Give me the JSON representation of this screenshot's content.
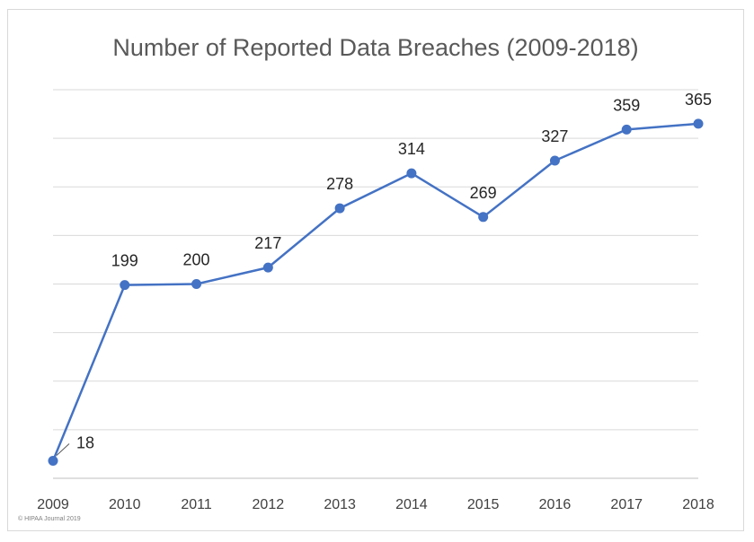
{
  "chart_data": {
    "type": "line",
    "title": "Number of Reported Data Breaches (2009-2018)",
    "xlabel": "",
    "ylabel": "",
    "categories": [
      "2009",
      "2010",
      "2011",
      "2012",
      "2013",
      "2014",
      "2015",
      "2016",
      "2017",
      "2018"
    ],
    "series": [
      {
        "values": [
          18,
          199,
          200,
          217,
          278,
          314,
          269,
          327,
          359,
          365
        ]
      }
    ],
    "ylim": [
      0,
      400
    ],
    "grid": true,
    "legend": "none",
    "data_labels": true,
    "colors": {
      "line": "#4472c4",
      "grid": "#d9d9d9",
      "axis": "#bfbfbf"
    }
  },
  "footer": {
    "copyright": "© HIPAA Journal 2019"
  }
}
